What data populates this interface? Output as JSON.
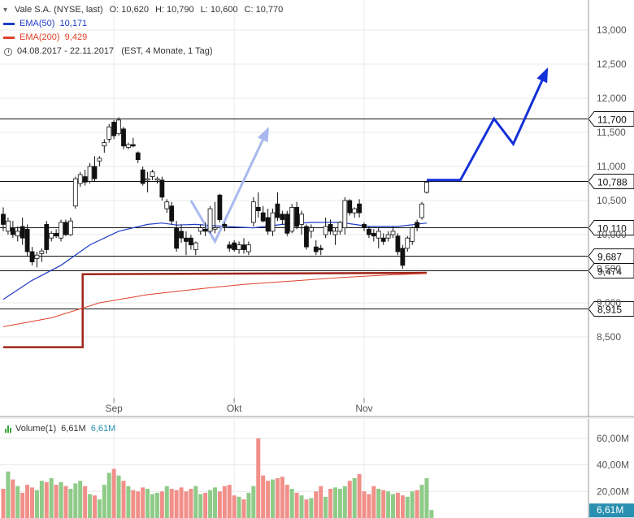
{
  "legend": {
    "title": "Vale S.A. (NYSE, last)",
    "open_label": "O:",
    "open": "10,620",
    "high_label": "H:",
    "high": "10,790",
    "low_label": "L:",
    "low": "10,600",
    "close_label": "C:",
    "close": "10,770",
    "ema50_label": "EMA(50)",
    "ema50_value": "10,171",
    "ema50_color": "#1f3cc7",
    "ema200_label": "EMA(200)",
    "ema200_value": "9,429",
    "ema200_color": "#e0402a",
    "range": "04.08.2017 - 22.11.2017",
    "range_info": "(EST, 4 Monate, 1 Tag)"
  },
  "volume_legend": {
    "label": "Volume(1)",
    "value1": "6,61M",
    "value2": "6,61M"
  },
  "chart_data": [
    {
      "type": "candlestick",
      "title": "Vale S.A. (NYSE, last)",
      "x_tick_labels": [
        "Sep",
        "Okt",
        "Nov"
      ],
      "y_tick_labels": [
        "8,500",
        "9,000",
        "9,500",
        "10,000",
        "10,500",
        "11,000",
        "11,500",
        "12,000",
        "12,500",
        "13,000"
      ],
      "ylim": [
        8.1,
        13.3
      ],
      "grid": true,
      "candles": [
        {
          "o": 10.3,
          "h": 10.4,
          "l": 10.05,
          "c": 10.15
        },
        {
          "o": 10.05,
          "h": 10.25,
          "l": 10.0,
          "c": 10.2
        },
        {
          "o": 10.1,
          "h": 10.2,
          "l": 9.95,
          "c": 10.0
        },
        {
          "o": 9.98,
          "h": 10.12,
          "l": 9.9,
          "c": 10.05
        },
        {
          "o": 10.12,
          "h": 10.25,
          "l": 9.85,
          "c": 9.95
        },
        {
          "o": 10.08,
          "h": 10.15,
          "l": 9.68,
          "c": 9.75
        },
        {
          "o": 9.75,
          "h": 9.82,
          "l": 9.55,
          "c": 9.6
        },
        {
          "o": 9.65,
          "h": 9.75,
          "l": 9.52,
          "c": 9.7
        },
        {
          "o": 9.72,
          "h": 9.8,
          "l": 9.6,
          "c": 9.76
        },
        {
          "o": 10.15,
          "h": 10.2,
          "l": 9.72,
          "c": 9.78
        },
        {
          "o": 9.95,
          "h": 10.05,
          "l": 9.9,
          "c": 10.02
        },
        {
          "o": 10.02,
          "h": 10.08,
          "l": 9.95,
          "c": 9.98
        },
        {
          "o": 9.95,
          "h": 10.22,
          "l": 9.9,
          "c": 10.18
        },
        {
          "o": 10.18,
          "h": 10.22,
          "l": 9.98,
          "c": 10.0
        },
        {
          "o": 10.0,
          "h": 10.25,
          "l": 9.98,
          "c": 10.2
        },
        {
          "o": 10.42,
          "h": 10.85,
          "l": 10.38,
          "c": 10.82
        },
        {
          "o": 10.75,
          "h": 10.92,
          "l": 10.7,
          "c": 10.88
        },
        {
          "o": 10.85,
          "h": 10.95,
          "l": 10.72,
          "c": 10.77
        },
        {
          "o": 10.78,
          "h": 11.05,
          "l": 10.75,
          "c": 11.0
        },
        {
          "o": 11.0,
          "h": 11.15,
          "l": 10.78,
          "c": 10.82
        },
        {
          "o": 11.08,
          "h": 11.15,
          "l": 11.0,
          "c": 11.12
        },
        {
          "o": 11.3,
          "h": 11.4,
          "l": 11.2,
          "c": 11.35
        },
        {
          "o": 11.4,
          "h": 11.62,
          "l": 11.35,
          "c": 11.58
        },
        {
          "o": 11.65,
          "h": 11.68,
          "l": 11.4,
          "c": 11.45
        },
        {
          "o": 11.48,
          "h": 11.72,
          "l": 11.45,
          "c": 11.68
        },
        {
          "o": 11.55,
          "h": 11.58,
          "l": 11.25,
          "c": 11.3
        },
        {
          "o": 11.28,
          "h": 11.35,
          "l": 11.25,
          "c": 11.32
        },
        {
          "o": 11.32,
          "h": 11.42,
          "l": 11.28,
          "c": 11.3
        },
        {
          "o": 11.2,
          "h": 11.22,
          "l": 11.05,
          "c": 11.1
        },
        {
          "o": 10.95,
          "h": 11.0,
          "l": 10.72,
          "c": 10.75
        },
        {
          "o": 10.8,
          "h": 10.92,
          "l": 10.62,
          "c": 10.82
        },
        {
          "o": 10.85,
          "h": 10.95,
          "l": 10.8,
          "c": 10.92
        },
        {
          "o": 10.8,
          "h": 10.85,
          "l": 10.75,
          "c": 10.82
        },
        {
          "o": 10.8,
          "h": 10.85,
          "l": 10.5,
          "c": 10.55
        },
        {
          "o": 10.38,
          "h": 10.52,
          "l": 10.32,
          "c": 10.48
        },
        {
          "o": 10.42,
          "h": 10.48,
          "l": 10.15,
          "c": 10.2
        },
        {
          "o": 10.1,
          "h": 10.2,
          "l": 9.75,
          "c": 9.8
        },
        {
          "o": 10.05,
          "h": 10.15,
          "l": 9.88,
          "c": 9.95
        },
        {
          "o": 9.95,
          "h": 10.05,
          "l": 9.7,
          "c": 9.9
        },
        {
          "o": 9.95,
          "h": 10.0,
          "l": 9.78,
          "c": 9.85
        },
        {
          "o": 9.78,
          "h": 9.9,
          "l": 9.7,
          "c": 9.88
        },
        {
          "o": 10.05,
          "h": 10.15,
          "l": 10.0,
          "c": 10.1
        },
        {
          "o": 10.08,
          "h": 10.18,
          "l": 9.98,
          "c": 10.05
        },
        {
          "o": 10.05,
          "h": 10.42,
          "l": 10.02,
          "c": 10.38
        },
        {
          "o": 10.08,
          "h": 10.48,
          "l": 10.02,
          "c": 10.1
        },
        {
          "o": 10.58,
          "h": 10.6,
          "l": 10.18,
          "c": 10.22
        },
        {
          "o": 10.15,
          "h": 10.18,
          "l": 10.05,
          "c": 10.12
        },
        {
          "o": 9.85,
          "h": 9.9,
          "l": 9.75,
          "c": 9.8
        },
        {
          "o": 9.88,
          "h": 9.92,
          "l": 9.75,
          "c": 9.78
        },
        {
          "o": 9.78,
          "h": 9.9,
          "l": 9.72,
          "c": 9.85
        },
        {
          "o": 9.85,
          "h": 9.95,
          "l": 9.72,
          "c": 9.78
        },
        {
          "o": 9.75,
          "h": 9.9,
          "l": 9.7,
          "c": 9.85
        },
        {
          "o": 10.18,
          "h": 10.55,
          "l": 10.12,
          "c": 10.48
        },
        {
          "o": 10.4,
          "h": 10.62,
          "l": 10.25,
          "c": 10.35
        },
        {
          "o": 10.32,
          "h": 10.42,
          "l": 10.18,
          "c": 10.2
        },
        {
          "o": 10.25,
          "h": 10.38,
          "l": 10.0,
          "c": 10.05
        },
        {
          "o": 10.05,
          "h": 10.38,
          "l": 9.98,
          "c": 10.32
        },
        {
          "o": 10.45,
          "h": 10.62,
          "l": 10.2,
          "c": 10.25
        },
        {
          "o": 10.3,
          "h": 10.35,
          "l": 10.15,
          "c": 10.22
        },
        {
          "o": 10.3,
          "h": 10.35,
          "l": 9.98,
          "c": 10.02
        },
        {
          "o": 10.05,
          "h": 10.45,
          "l": 10.02,
          "c": 10.4
        },
        {
          "o": 10.4,
          "h": 10.48,
          "l": 10.08,
          "c": 10.12
        },
        {
          "o": 10.15,
          "h": 10.35,
          "l": 10.0,
          "c": 10.3
        },
        {
          "o": 10.12,
          "h": 10.15,
          "l": 9.78,
          "c": 9.82
        },
        {
          "o": 10.05,
          "h": 10.15,
          "l": 9.95,
          "c": 10.1
        },
        {
          "o": 9.82,
          "h": 9.92,
          "l": 9.7,
          "c": 9.75
        },
        {
          "o": 9.8,
          "h": 9.85,
          "l": 9.7,
          "c": 9.78
        },
        {
          "o": 10.0,
          "h": 10.25,
          "l": 9.95,
          "c": 10.12
        },
        {
          "o": 10.15,
          "h": 10.22,
          "l": 10.0,
          "c": 10.05
        },
        {
          "o": 10.0,
          "h": 10.1,
          "l": 9.85,
          "c": 10.05
        },
        {
          "o": 10.05,
          "h": 10.2,
          "l": 10.0,
          "c": 10.18
        },
        {
          "o": 10.1,
          "h": 10.55,
          "l": 10.0,
          "c": 10.5
        },
        {
          "o": 10.5,
          "h": 10.52,
          "l": 10.28,
          "c": 10.32
        },
        {
          "o": 10.32,
          "h": 10.4,
          "l": 10.25,
          "c": 10.38
        },
        {
          "o": 10.45,
          "h": 10.52,
          "l": 10.25,
          "c": 10.32
        },
        {
          "o": 10.15,
          "h": 10.18,
          "l": 10.05,
          "c": 10.1
        },
        {
          "o": 10.08,
          "h": 10.12,
          "l": 9.95,
          "c": 10.0
        },
        {
          "o": 10.02,
          "h": 10.08,
          "l": 9.9,
          "c": 9.98
        },
        {
          "o": 9.95,
          "h": 10.1,
          "l": 9.8,
          "c": 10.05
        },
        {
          "o": 9.95,
          "h": 10.02,
          "l": 9.85,
          "c": 9.9
        },
        {
          "o": 9.95,
          "h": 10.05,
          "l": 9.9,
          "c": 10.0
        },
        {
          "o": 10.0,
          "h": 10.12,
          "l": 9.95,
          "c": 10.05
        },
        {
          "o": 9.98,
          "h": 10.02,
          "l": 9.7,
          "c": 9.75
        },
        {
          "o": 9.8,
          "h": 9.85,
          "l": 9.5,
          "c": 9.55
        },
        {
          "o": 9.8,
          "h": 9.98,
          "l": 9.75,
          "c": 9.95
        },
        {
          "o": 9.9,
          "h": 10.12,
          "l": 9.85,
          "c": 10.1
        },
        {
          "o": 10.18,
          "h": 10.22,
          "l": 10.05,
          "c": 10.1
        },
        {
          "o": 10.25,
          "h": 10.48,
          "l": 10.22,
          "c": 10.45
        },
        {
          "o": 10.62,
          "h": 10.79,
          "l": 10.6,
          "c": 10.77
        }
      ],
      "series": [
        {
          "name": "EMA(50)",
          "color": "#1f3cc7",
          "x": [
            0,
            6,
            12,
            18,
            24,
            30,
            33,
            36,
            40,
            46,
            52,
            58,
            64,
            70,
            76,
            82,
            88
          ],
          "values": [
            9.05,
            9.33,
            9.55,
            9.85,
            10.05,
            10.15,
            10.17,
            10.14,
            10.15,
            10.12,
            10.1,
            10.15,
            10.18,
            10.18,
            10.12,
            10.12,
            10.17
          ]
        },
        {
          "name": "EMA(200)",
          "color": "#e0402a",
          "x": [
            0,
            10,
            20,
            30,
            40,
            50,
            60,
            70,
            80,
            88
          ],
          "values": [
            8.65,
            8.78,
            9.0,
            9.12,
            9.2,
            9.27,
            9.32,
            9.37,
            9.41,
            9.43
          ]
        }
      ],
      "horizontal_levels": [
        {
          "label": "11,700",
          "value": 11.7
        },
        {
          "label": "10,788",
          "value": 10.788
        },
        {
          "label": "10,110",
          "value": 10.11
        },
        {
          "label": "9,687",
          "value": 9.687
        },
        {
          "label": "9,474",
          "value": 9.474
        },
        {
          "label": "8,915",
          "value": 8.915
        }
      ],
      "projection": {
        "color": "#1430d8",
        "x": [
          88,
          95,
          102,
          106,
          113
        ],
        "values": [
          10.8,
          10.8,
          11.7,
          11.33,
          12.42
        ]
      },
      "faded_projection": {
        "color": "#a9b9ef",
        "x": [
          39,
          44,
          55
        ],
        "values": [
          10.5,
          9.9,
          11.55
        ]
      },
      "support_box": {
        "color": "#a0251c",
        "x": [
          0,
          16.5,
          16.5,
          88
        ],
        "values": [
          8.35,
          8.35,
          9.42,
          9.44
        ]
      }
    },
    {
      "type": "bar",
      "title": "Volume(1)",
      "y_tick_labels": [
        "20,00M",
        "40,00M",
        "60,00M"
      ],
      "ylim": [
        0,
        66
      ],
      "latest_label": "6,61M",
      "up_color": "#8ecb88",
      "down_color": "#f18f89",
      "values": [
        22,
        35,
        29,
        24,
        19,
        25,
        23,
        21,
        28,
        27,
        30,
        25,
        27,
        24,
        22,
        26,
        28,
        24,
        18,
        17,
        14,
        25,
        34,
        37,
        32,
        28,
        24,
        21,
        20,
        23,
        22,
        18,
        19,
        20,
        24,
        22,
        21,
        23,
        20,
        22,
        24,
        18,
        19,
        21,
        23,
        20,
        24,
        25,
        17,
        16,
        14,
        19,
        24,
        60,
        32,
        28,
        29,
        30,
        31,
        25,
        22,
        19,
        17,
        14,
        15,
        20,
        24,
        16,
        22,
        23,
        22,
        24,
        28,
        30,
        33,
        20,
        18,
        24,
        22,
        21,
        20,
        18,
        19,
        17,
        16,
        20,
        21,
        25,
        30,
        6
      ]
    }
  ]
}
